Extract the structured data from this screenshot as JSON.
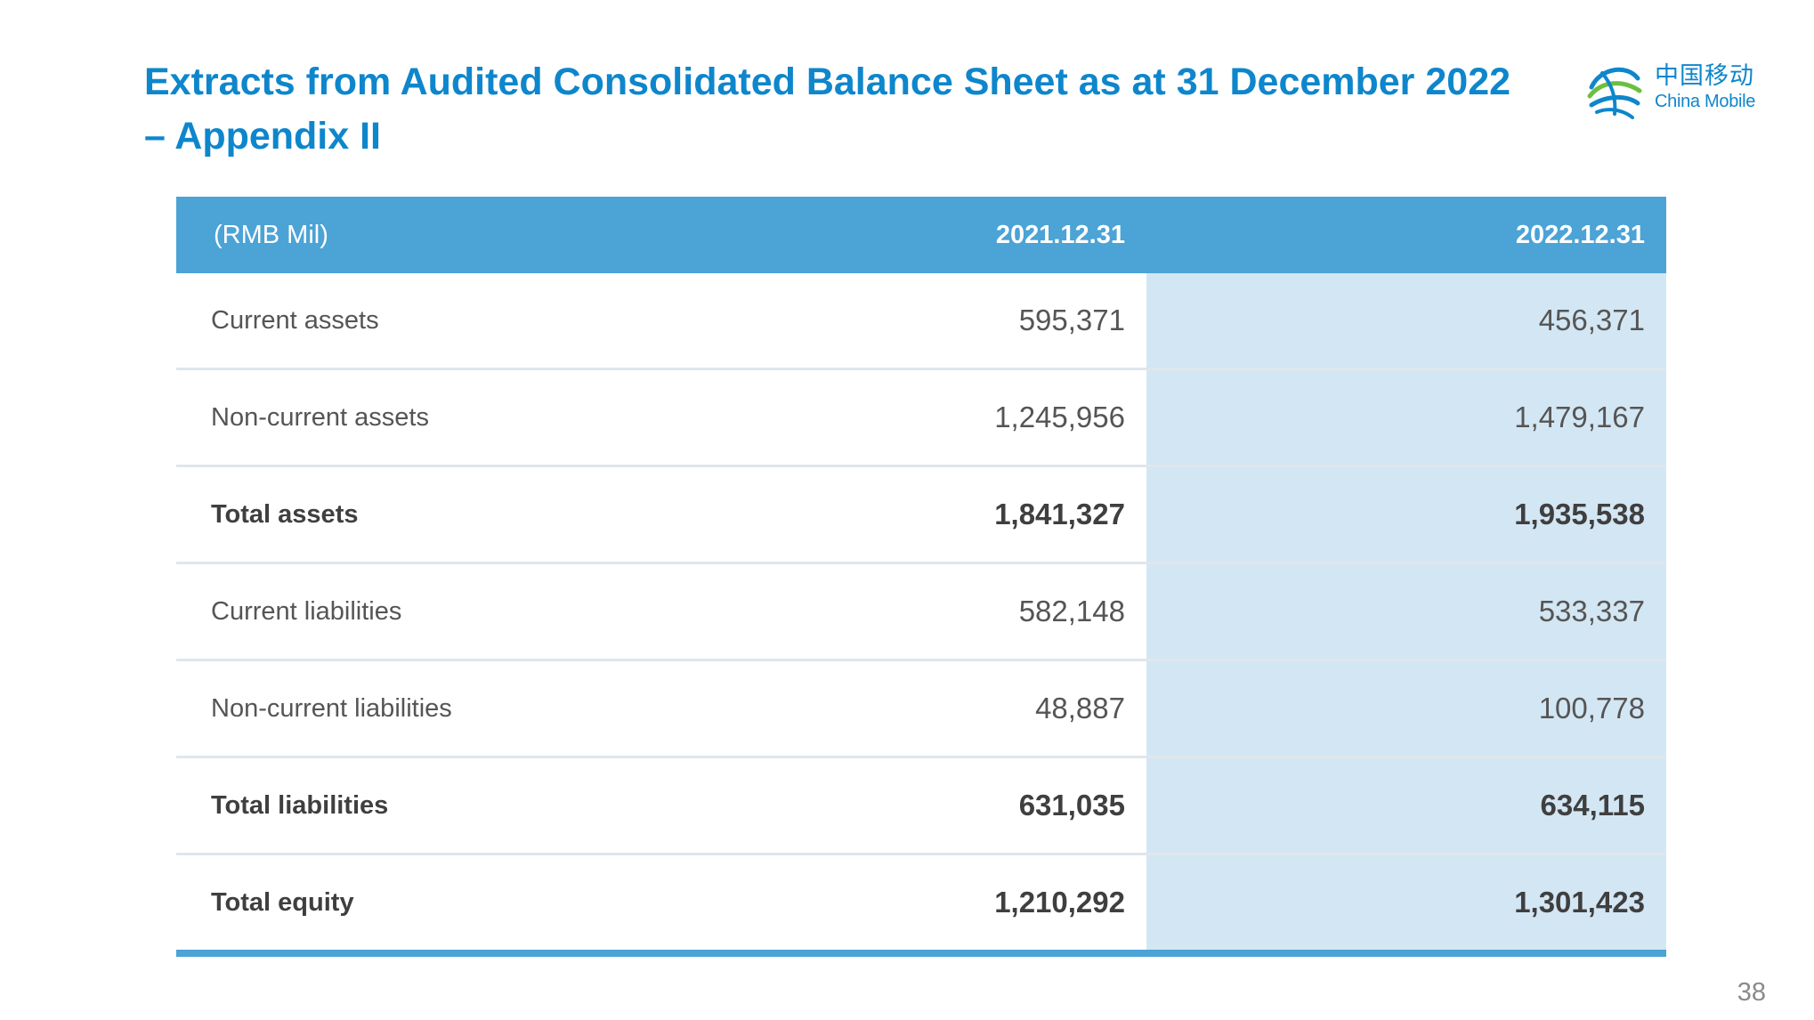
{
  "title": {
    "line1": "Extracts from Audited Consolidated Balance Sheet as at 31 December 2022",
    "line2": "– Appendix II"
  },
  "logo": {
    "chinese": "中国移动",
    "english": "China Mobile",
    "icon": "china-mobile-swirl-logo",
    "color": "#0e86cc"
  },
  "table": {
    "unit_label": "(RMB Mil)",
    "columns": [
      "2021.12.31",
      "2022.12.31"
    ],
    "rows": [
      {
        "label": "Current assets",
        "v2021": "595,371",
        "v2022": "456,371",
        "bold": false
      },
      {
        "label": "Non-current assets",
        "v2021": "1,245,956",
        "v2022": "1,479,167",
        "bold": false
      },
      {
        "label": "Total assets",
        "v2021": "1,841,327",
        "v2022": "1,935,538",
        "bold": true
      },
      {
        "label": "Current liabilities",
        "v2021": "582,148",
        "v2022": "533,337",
        "bold": false
      },
      {
        "label": "Non-current liabilities",
        "v2021": "48,887",
        "v2022": "100,778",
        "bold": false
      },
      {
        "label": "Total liabilities",
        "v2021": "631,035",
        "v2022": "634,115",
        "bold": true
      },
      {
        "label": "Total equity",
        "v2021": "1,210,292",
        "v2022": "1,301,423",
        "bold": true
      }
    ],
    "header_color": "#4ba3d6",
    "highlight_column_color": "#d3e6f3"
  },
  "page_number": "38"
}
